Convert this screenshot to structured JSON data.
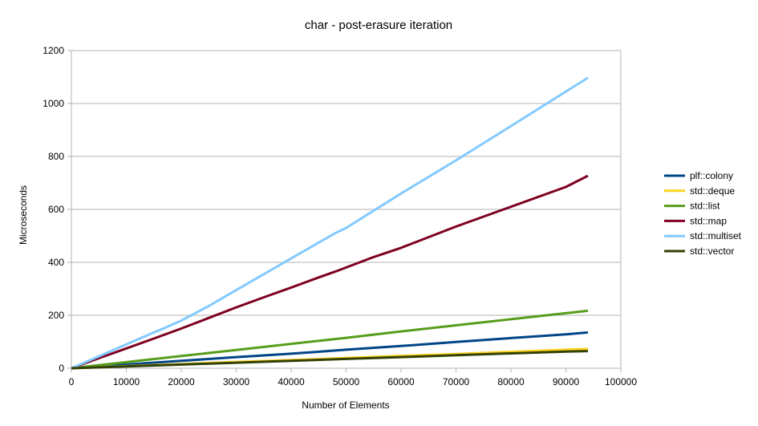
{
  "chart_data": {
    "type": "line",
    "title": "char - post-erasure iteration",
    "xlabel": "Number of Elements",
    "ylabel": "Microseconds",
    "xlim": [
      0,
      100000
    ],
    "ylim": [
      0,
      1200
    ],
    "x_ticks": [
      0,
      10000,
      20000,
      30000,
      40000,
      50000,
      60000,
      70000,
      80000,
      90000,
      100000
    ],
    "y_ticks": [
      0,
      200,
      400,
      600,
      800,
      1000,
      1200
    ],
    "grid": "horizontal",
    "legend_position": "right",
    "series": [
      {
        "name": "plf::colony",
        "color": "#004586",
        "x": [
          0,
          10000,
          20000,
          30000,
          40000,
          50000,
          60000,
          70000,
          80000,
          90000,
          94000
        ],
        "values": [
          0,
          14,
          28,
          42,
          55,
          70,
          84,
          99,
          114,
          128,
          135
        ]
      },
      {
        "name": "std::deque",
        "color": "#ffd320",
        "x": [
          0,
          10000,
          20000,
          30000,
          40000,
          50000,
          60000,
          70000,
          80000,
          90000,
          94000
        ],
        "values": [
          0,
          8,
          16,
          24,
          31,
          39,
          47,
          54,
          62,
          70,
          73
        ]
      },
      {
        "name": "std::list",
        "color": "#579d1c",
        "x": [
          0,
          10000,
          20000,
          30000,
          40000,
          50000,
          60000,
          70000,
          80000,
          90000,
          94000
        ],
        "values": [
          0,
          23,
          46,
          69,
          92,
          115,
          139,
          162,
          185,
          208,
          217
        ]
      },
      {
        "name": "std::map",
        "color": "#7e0021",
        "x": [
          0,
          5000,
          10000,
          15000,
          20000,
          25000,
          30000,
          35000,
          40000,
          45000,
          48000,
          55000,
          60000,
          70000,
          80000,
          90000,
          94000
        ],
        "values": [
          0,
          38,
          75,
          112,
          150,
          190,
          230,
          268,
          305,
          343,
          365,
          420,
          455,
          535,
          610,
          685,
          727
        ]
      },
      {
        "name": "std::multiset",
        "color": "#83caff",
        "x": [
          0,
          10000,
          15000,
          17000,
          20000,
          25000,
          30000,
          40000,
          48000,
          50000,
          60000,
          70000,
          80000,
          90000,
          94000
        ],
        "values": [
          0,
          90,
          135,
          152,
          180,
          235,
          295,
          415,
          510,
          530,
          660,
          785,
          915,
          1045,
          1097
        ]
      },
      {
        "name": "std::vector",
        "color": "#314004",
        "x": [
          0,
          10000,
          20000,
          30000,
          40000,
          50000,
          60000,
          70000,
          80000,
          90000,
          94000
        ],
        "values": [
          0,
          7,
          14,
          21,
          28,
          35,
          42,
          49,
          56,
          63,
          65
        ]
      }
    ]
  }
}
